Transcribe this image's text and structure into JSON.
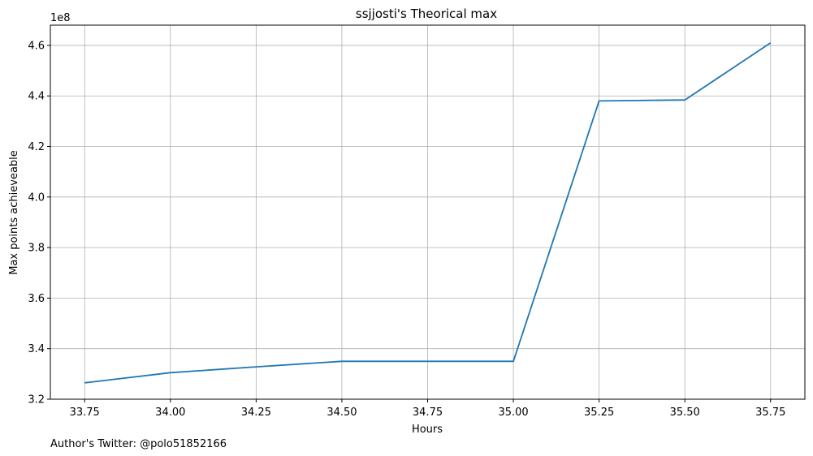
{
  "chart_data": {
    "type": "line",
    "title": "ssjjosti's Theorical max",
    "xlabel": "Hours",
    "ylabel": "Max points achieveable",
    "y_scale_label": "1e8",
    "footnote": "Author's Twitter: @polo51852166",
    "grid": true,
    "xlim": [
      33.65,
      35.85
    ],
    "ylim": [
      3.2,
      4.68
    ],
    "xticks": [
      33.75,
      34.0,
      34.25,
      34.5,
      34.75,
      35.0,
      35.25,
      35.5,
      35.75
    ],
    "xtick_labels": [
      "33.75",
      "34.00",
      "34.25",
      "34.50",
      "34.75",
      "35.00",
      "35.25",
      "35.50",
      "35.75"
    ],
    "yticks": [
      3.2,
      3.4,
      3.6,
      3.8,
      4.0,
      4.2,
      4.4,
      4.6
    ],
    "ytick_labels": [
      "3.2",
      "3.4",
      "3.6",
      "3.8",
      "4.0",
      "4.2",
      "4.4",
      "4.6"
    ],
    "series": [
      {
        "color": "#1f77b4",
        "x": [
          33.75,
          34.0,
          34.25,
          34.5,
          34.75,
          35.0,
          35.25,
          35.5,
          35.75
        ],
        "y": [
          3.265,
          3.305,
          3.328,
          3.35,
          3.35,
          3.35,
          4.38,
          4.384,
          4.61
        ]
      }
    ]
  }
}
